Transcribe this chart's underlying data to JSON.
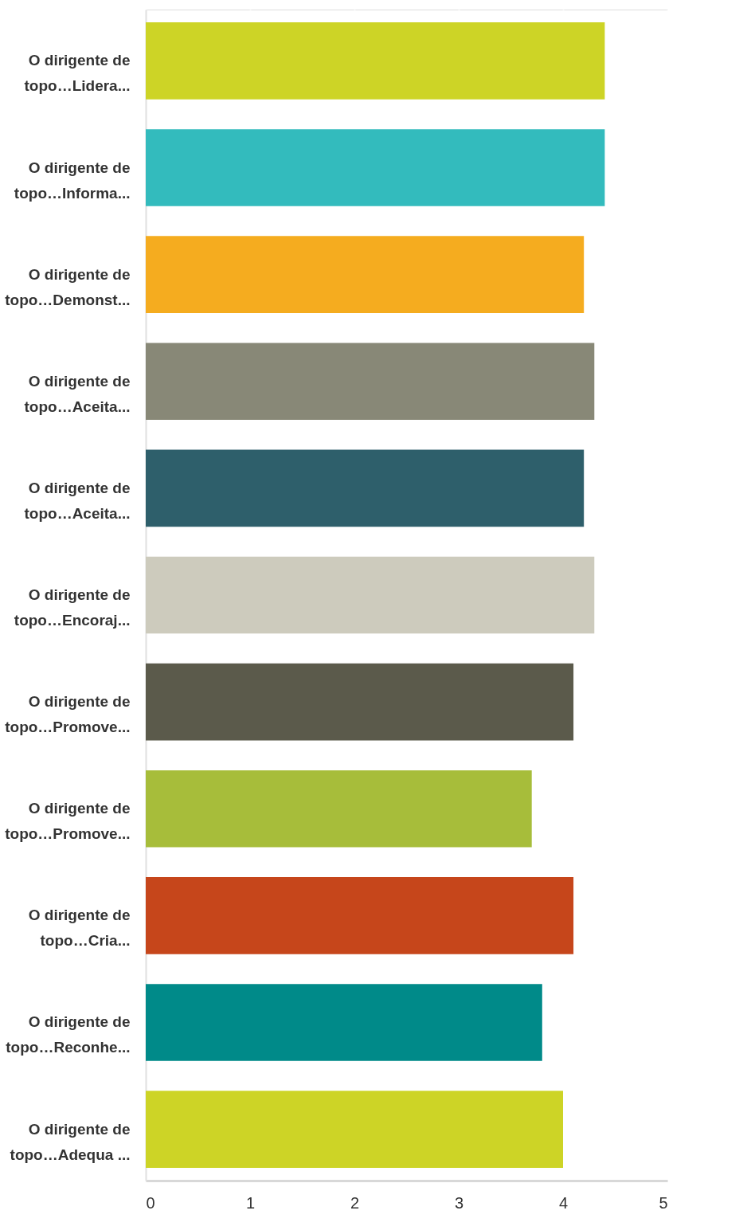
{
  "chart_data": {
    "type": "bar",
    "orientation": "horizontal",
    "categories": [
      "O dirigente de\ntopo…Lidera...",
      "O dirigente de\ntopo…Informa...",
      "O dirigente de\ntopo…Demonst...",
      "O dirigente de\ntopo…Aceita...",
      "O dirigente de\ntopo…Aceita...",
      "O dirigente de\ntopo…Encoraj...",
      "O dirigente de\ntopo…Promove...",
      "O dirigente de\ntopo…Promove...",
      "O dirigente de\ntopo…Cria...",
      "O dirigente de\ntopo…Reconhe...",
      "O dirigente de\ntopo…Adequa ..."
    ],
    "values": [
      4.4,
      4.4,
      4.2,
      4.3,
      4.2,
      4.3,
      4.1,
      3.7,
      4.1,
      3.8,
      4.0
    ],
    "colors": [
      "#cdd426",
      "#33bbbd",
      "#f5ac1f",
      "#888877",
      "#2e5f6b",
      "#cdcbbd",
      "#5b5a4b",
      "#a7bd3a",
      "#c6461b",
      "#008a89",
      "#cdd426"
    ],
    "xlim": [
      0,
      5
    ],
    "xticks": [
      0,
      1,
      2,
      3,
      4,
      5
    ],
    "grid": "x"
  }
}
